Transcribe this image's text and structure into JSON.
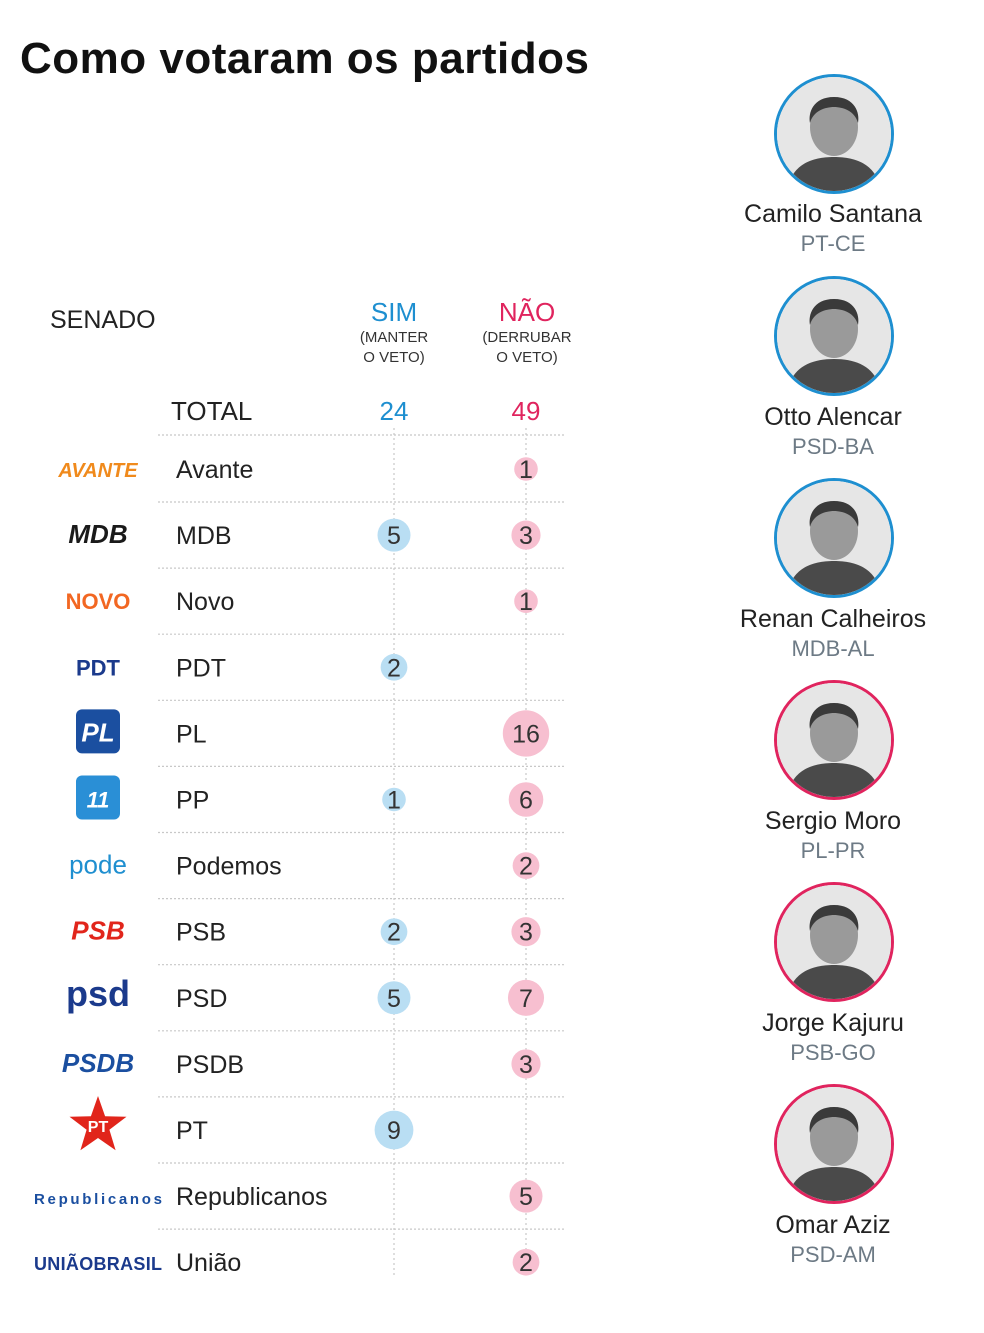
{
  "title": "Como votaram os partidos",
  "section_label": "SENADO",
  "columns": {
    "sim": {
      "label": "SIM",
      "sub1": "(MANTER",
      "sub2": "O VETO)"
    },
    "nao": {
      "label": "NÃO",
      "sub1": "(DERRUBAR",
      "sub2": "O VETO)"
    }
  },
  "colors": {
    "sim": "#1e8fd0",
    "nao": "#e0245e",
    "sim_bubble": "#b9def3",
    "nao_bubble": "#f7bfd0",
    "grid": "#c8c8c8"
  },
  "chart_data": {
    "type": "table",
    "total_label": "TOTAL",
    "totals": {
      "sim": 24,
      "nao": 49
    },
    "rows": [
      {
        "party": "Avante",
        "logo": "AVANTE",
        "sim": null,
        "nao": 1
      },
      {
        "party": "MDB",
        "logo": "MDB",
        "sim": 5,
        "nao": 3
      },
      {
        "party": "Novo",
        "logo": "NOVO",
        "sim": null,
        "nao": 1
      },
      {
        "party": "PDT",
        "logo": "PDT",
        "sim": 2,
        "nao": null
      },
      {
        "party": "PL",
        "logo": "PL",
        "sim": null,
        "nao": 16
      },
      {
        "party": "PP",
        "logo": "11",
        "sim": 1,
        "nao": 6
      },
      {
        "party": "Podemos",
        "logo": "pode",
        "sim": null,
        "nao": 2
      },
      {
        "party": "PSB",
        "logo": "PSB",
        "sim": 2,
        "nao": 3
      },
      {
        "party": "PSD",
        "logo": "psd",
        "sim": 5,
        "nao": 7
      },
      {
        "party": "PSDB",
        "logo": "PSDB",
        "sim": null,
        "nao": 3
      },
      {
        "party": "PT",
        "logo": "PT",
        "sim": 9,
        "nao": null
      },
      {
        "party": "Republicanos",
        "logo": "Republicanos",
        "sim": null,
        "nao": 5
      },
      {
        "party": "União",
        "logo": "UNIÃOBRASIL",
        "sim": null,
        "nao": 2
      }
    ]
  },
  "people": [
    {
      "name": "Camilo Santana",
      "party": "PT-CE",
      "vote": "sim",
      "icon": "portrait-photo"
    },
    {
      "name": "Otto Alencar",
      "party": "PSD-BA",
      "vote": "sim",
      "icon": "portrait-photo"
    },
    {
      "name": "Renan Calheiros",
      "party": "MDB-AL",
      "vote": "sim",
      "icon": "portrait-photo"
    },
    {
      "name": "Sergio Moro",
      "party": "PL-PR",
      "vote": "nao",
      "icon": "portrait-photo"
    },
    {
      "name": "Jorge Kajuru",
      "party": "PSB-GO",
      "vote": "nao",
      "icon": "portrait-photo"
    },
    {
      "name": "Omar Aziz",
      "party": "PSD-AM",
      "vote": "nao",
      "icon": "portrait-photo"
    }
  ]
}
